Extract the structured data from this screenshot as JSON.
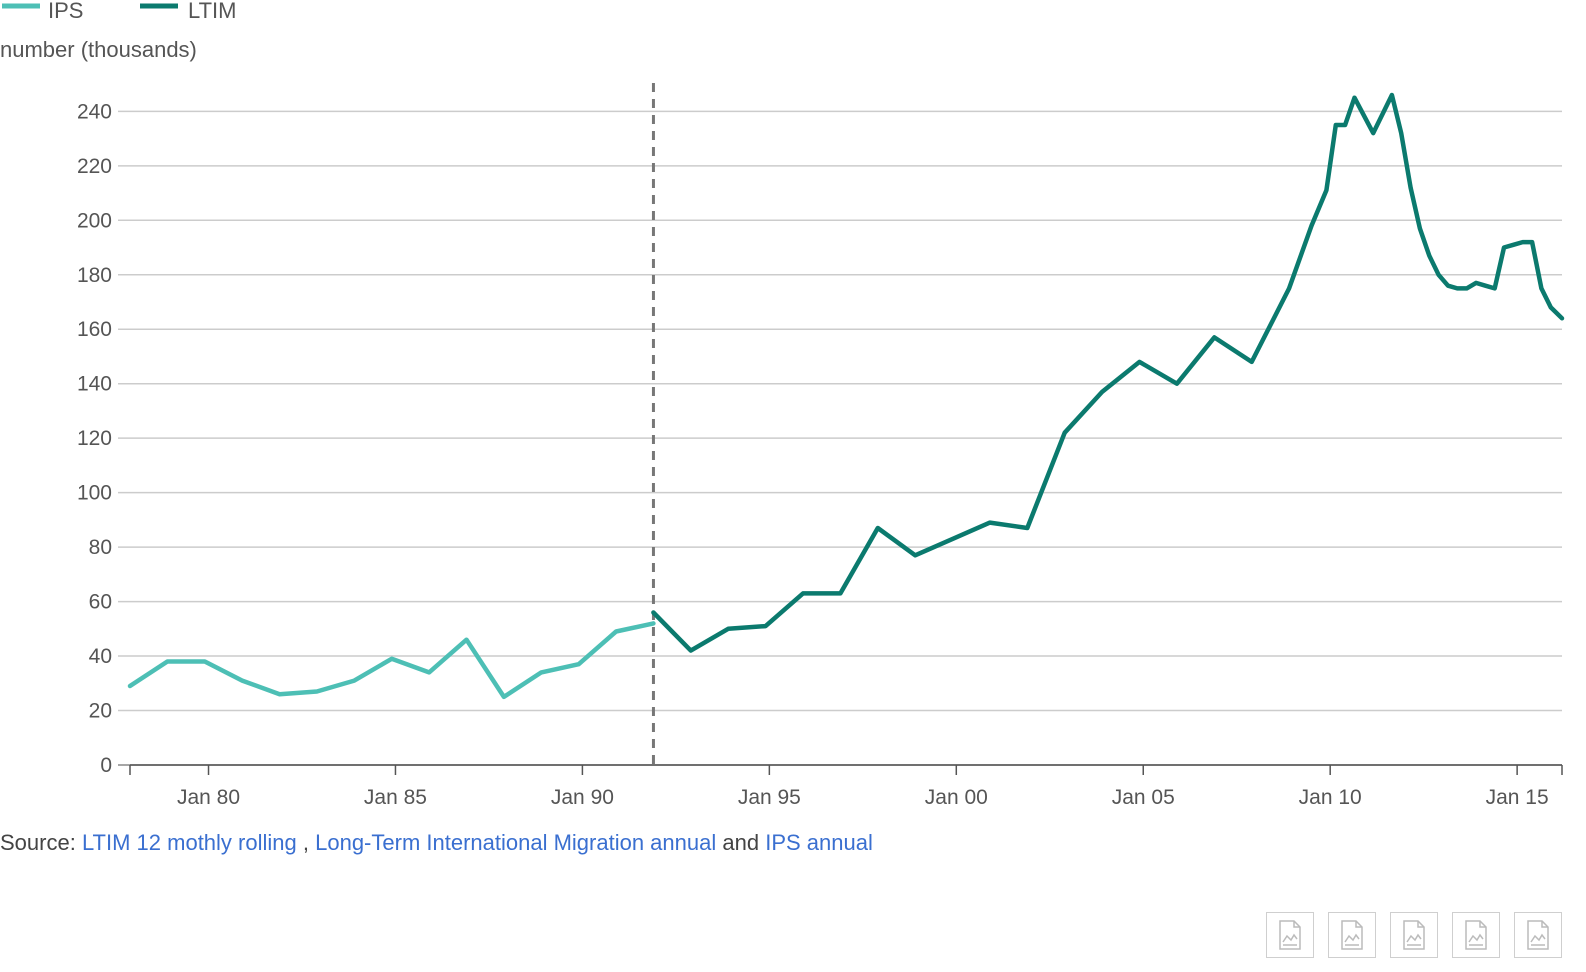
{
  "chart_data": {
    "type": "line",
    "ylabel": "number (thousands)",
    "ylim": [
      0,
      246
    ],
    "y_ticks": [
      0,
      20,
      40,
      60,
      80,
      100,
      120,
      140,
      160,
      180,
      200,
      220,
      240
    ],
    "x_ticks": [
      {
        "year": 1980,
        "label": "Jan 80"
      },
      {
        "year": 1985,
        "label": "Jan 85"
      },
      {
        "year": 1990,
        "label": "Jan 90"
      },
      {
        "year": 1995,
        "label": "Jan 95"
      },
      {
        "year": 2000,
        "label": "Jan 00"
      },
      {
        "year": 2005,
        "label": "Jan 05"
      },
      {
        "year": 2010,
        "label": "Jan 10"
      },
      {
        "year": 2015,
        "label": "Jan 15"
      }
    ],
    "xlim": [
      1977.9,
      2016.2
    ],
    "reference_line_year": 1991.9,
    "grid": true,
    "legend_position": "top-left",
    "series": [
      {
        "name": "IPS",
        "color": "#4dbfb5",
        "points": [
          [
            1977.9,
            29
          ],
          [
            1978.9,
            38
          ],
          [
            1979.9,
            38
          ],
          [
            1980.9,
            31
          ],
          [
            1981.9,
            26
          ],
          [
            1982.9,
            27
          ],
          [
            1983.9,
            31
          ],
          [
            1984.9,
            39
          ],
          [
            1985.9,
            34
          ],
          [
            1986.9,
            46
          ],
          [
            1987.9,
            25
          ],
          [
            1988.9,
            34
          ],
          [
            1989.9,
            37
          ],
          [
            1990.9,
            49
          ],
          [
            1991.9,
            52
          ]
        ]
      },
      {
        "name": "LTIM",
        "color": "#0b7a6e",
        "points": [
          [
            1991.9,
            56
          ],
          [
            1992.9,
            42
          ],
          [
            1993.9,
            50
          ],
          [
            1994.9,
            51
          ],
          [
            1995.9,
            63
          ],
          [
            1996.9,
            63
          ],
          [
            1997.9,
            87
          ],
          [
            1998.9,
            77
          ],
          [
            1999.9,
            83
          ],
          [
            2000.9,
            89
          ],
          [
            2001.9,
            87
          ],
          [
            2002.9,
            122
          ],
          [
            2003.9,
            137
          ],
          [
            2004.9,
            148
          ],
          [
            2005.9,
            140
          ],
          [
            2006.9,
            157
          ],
          [
            2007.9,
            148
          ],
          [
            2008.9,
            175
          ],
          [
            2009.5,
            198
          ],
          [
            2009.9,
            211
          ],
          [
            2010.15,
            235
          ],
          [
            2010.4,
            235
          ],
          [
            2010.65,
            245
          ],
          [
            2011.15,
            232
          ],
          [
            2011.65,
            246
          ],
          [
            2011.9,
            232
          ],
          [
            2012.15,
            212
          ],
          [
            2012.4,
            197
          ],
          [
            2012.65,
            187
          ],
          [
            2012.9,
            180
          ],
          [
            2013.15,
            176
          ],
          [
            2013.4,
            175
          ],
          [
            2013.65,
            175
          ],
          [
            2013.9,
            177
          ],
          [
            2014.15,
            176
          ],
          [
            2014.4,
            175
          ],
          [
            2014.65,
            190
          ],
          [
            2014.9,
            191
          ],
          [
            2015.15,
            192
          ],
          [
            2015.4,
            192
          ],
          [
            2015.65,
            175
          ],
          [
            2015.9,
            168
          ],
          [
            2016.2,
            164
          ]
        ]
      }
    ]
  },
  "source": {
    "prefix": "Source:",
    "link1": "LTIM 12 mothly rolling",
    "sep1": ",",
    "link2": "Long-Term International Migration annual",
    "sep2": "and",
    "link3": "IPS annual"
  },
  "downloads": [
    {
      "icon": "image-download-icon"
    },
    {
      "icon": "image-download-icon"
    },
    {
      "icon": "image-download-icon"
    },
    {
      "icon": "image-download-icon"
    },
    {
      "icon": "image-download-icon"
    }
  ]
}
